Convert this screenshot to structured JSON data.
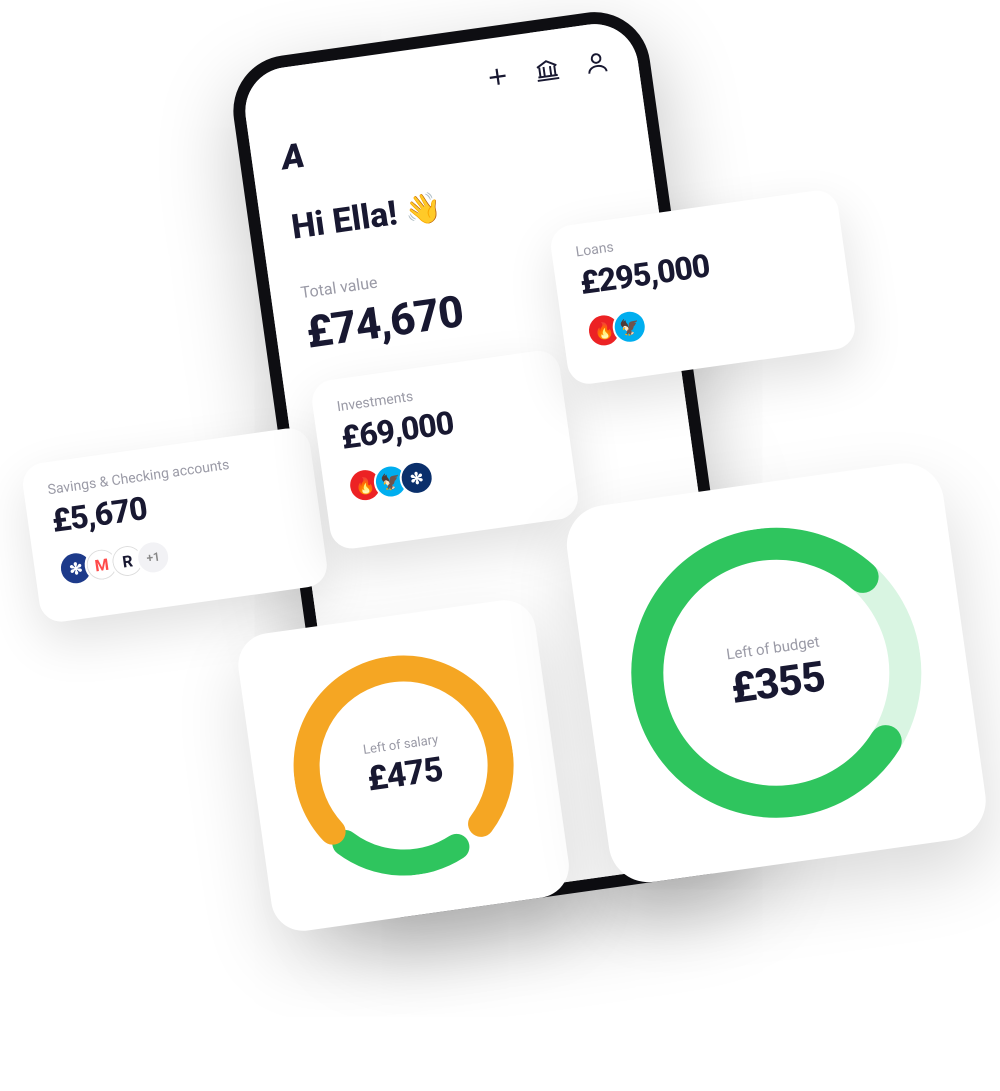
{
  "header": {
    "logo": "A",
    "greeting": "Hi Ella!",
    "wave": "👋"
  },
  "total": {
    "label": "Total value",
    "value": "£74,670"
  },
  "cards": {
    "savings": {
      "label": "Savings & Checking accounts",
      "value": "£5,670",
      "bank_colors": [
        "#1d3a8a",
        "#ffffff",
        "#ffffff"
      ],
      "bank_glyphs": [
        "✻",
        "M",
        "R"
      ],
      "bank_text_colors": [
        "#fff",
        "#ff4a4a",
        "#181831"
      ],
      "extra": "+1"
    },
    "investments": {
      "label": "Investments",
      "value": "£69,000",
      "bank_colors": [
        "#ec2224",
        "#00aeef",
        "#0a2f6b"
      ],
      "bank_glyphs": [
        "🔥",
        "🦅",
        "✻"
      ],
      "bank_text_colors": [
        "#fff",
        "#fff",
        "#fff"
      ]
    },
    "loans": {
      "label": "Loans",
      "value": "£295,000",
      "bank_colors": [
        "#ec2224",
        "#00aeef"
      ],
      "bank_glyphs": [
        "🔥",
        "🦅"
      ],
      "bank_text_colors": [
        "#fff",
        "#fff"
      ]
    }
  },
  "rings": {
    "salary": {
      "label": "Left of salary",
      "value": "£475",
      "size": 220,
      "stroke": 26,
      "segments": [
        {
          "color": "#2fc55e",
          "start": 155,
          "sweep": 70
        },
        {
          "color": "#f5a623",
          "start": 235,
          "sweep": 260
        }
      ],
      "bg": "#ffffff"
    },
    "budget": {
      "label": "Left of budget",
      "value": "£355",
      "size": 290,
      "stroke": 32,
      "segments": [
        {
          "color": "#d9f5e2",
          "start": 0,
          "sweep": 360
        },
        {
          "color": "#2fc55e",
          "start": 130,
          "sweep": 280
        }
      ],
      "bg": "#ffffff"
    }
  },
  "colors": {
    "text": "#181831",
    "muted": "#9a9aa6",
    "card_bg": "#ffffff",
    "phone_frame": "#0e0e12"
  }
}
